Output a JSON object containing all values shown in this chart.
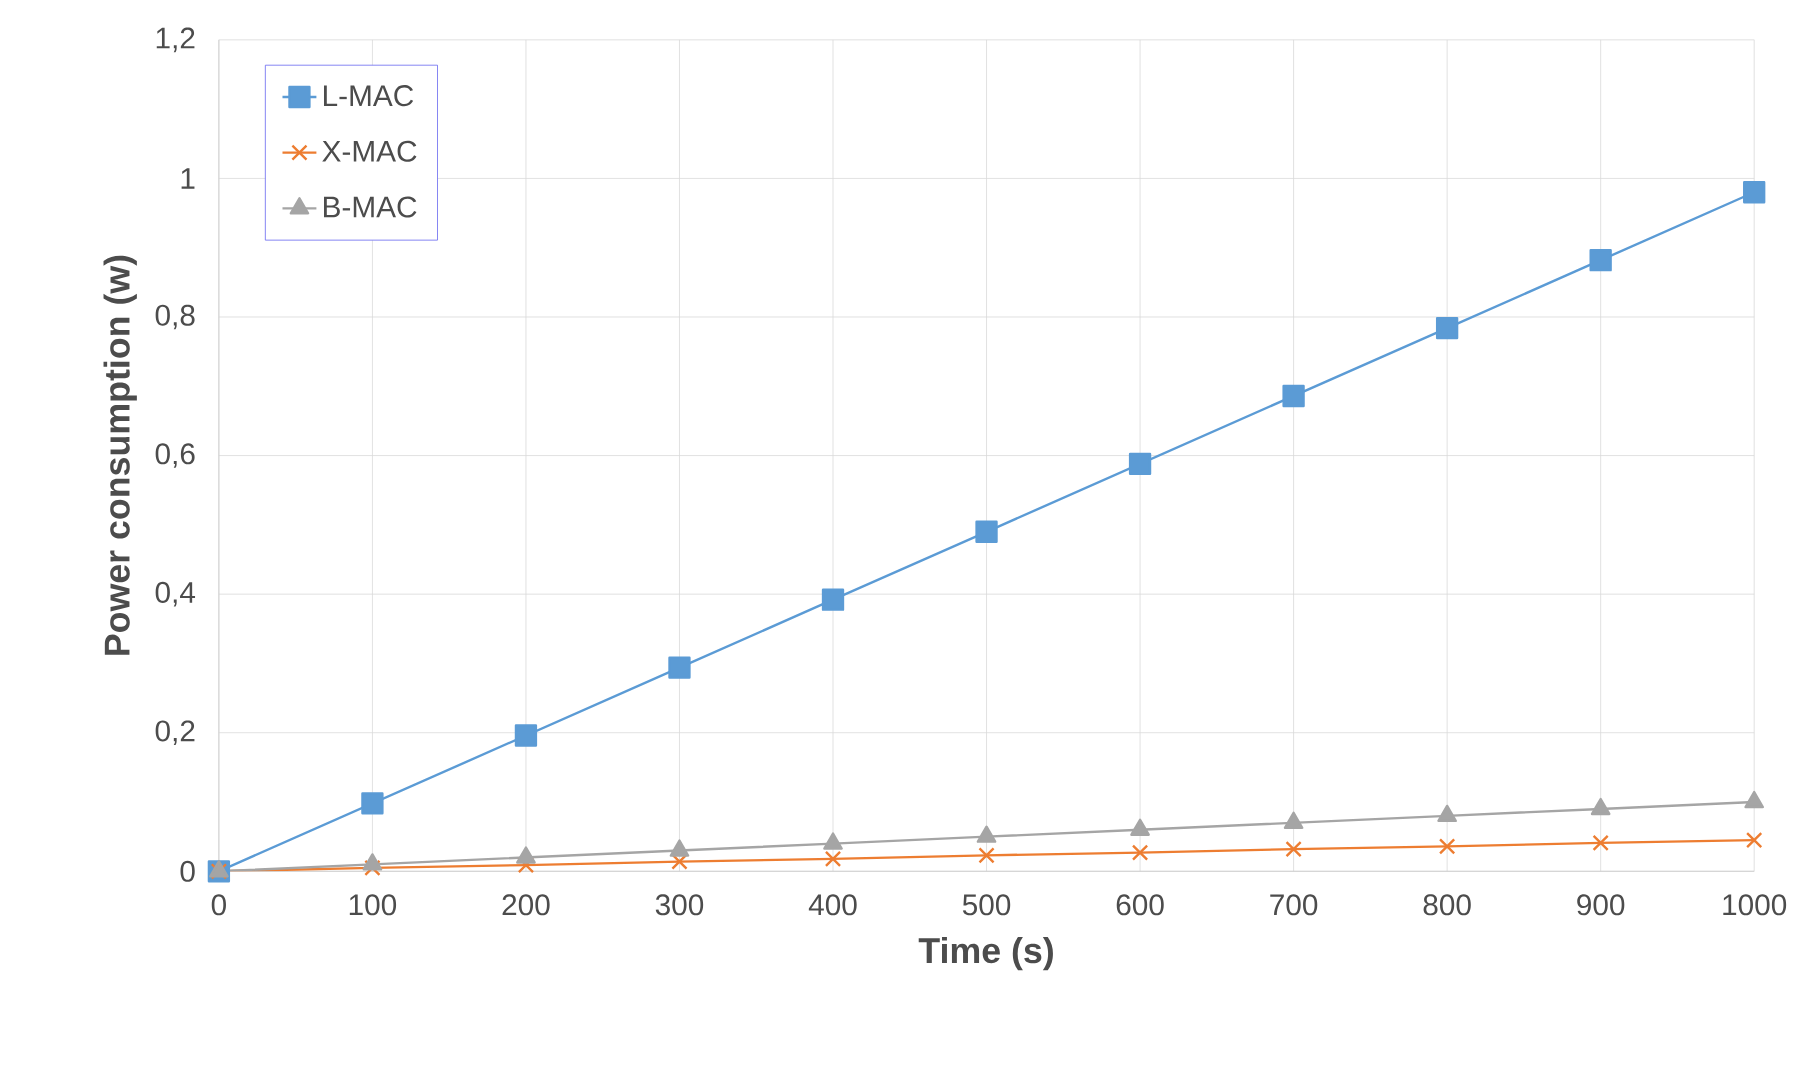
{
  "chart_data": {
    "type": "line",
    "xlabel": "Time (s)",
    "ylabel": "Power consumption (w)",
    "x": [
      0,
      100,
      200,
      300,
      400,
      500,
      600,
      700,
      800,
      900,
      1000
    ],
    "series": [
      {
        "name": "L-MAC",
        "color": "#5b9bd5",
        "marker": "square",
        "values": [
          0,
          0.098,
          0.196,
          0.294,
          0.392,
          0.49,
          0.588,
          0.686,
          0.784,
          0.882,
          0.98
        ]
      },
      {
        "name": "X-MAC",
        "color": "#ed7d31",
        "marker": "cross",
        "values": [
          0,
          0.005,
          0.009,
          0.014,
          0.018,
          0.023,
          0.027,
          0.032,
          0.036,
          0.041,
          0.045
        ]
      },
      {
        "name": "B-MAC",
        "color": "#a5a5a5",
        "marker": "triangle",
        "values": [
          0,
          0.01,
          0.02,
          0.03,
          0.04,
          0.05,
          0.06,
          0.07,
          0.08,
          0.09,
          0.1
        ]
      }
    ],
    "xlim": [
      0,
      1000
    ],
    "ylim": [
      0,
      1.2
    ],
    "xticks": [
      0,
      100,
      200,
      300,
      400,
      500,
      600,
      700,
      800,
      900,
      1000
    ],
    "yticks": [
      0,
      {
        "value": 0.2,
        "label": "0,2"
      },
      {
        "value": 0.4,
        "label": "0,4"
      },
      {
        "value": 0.6,
        "label": "0,6"
      },
      {
        "value": 0.8,
        "label": "0,8"
      },
      1,
      {
        "value": 1.2,
        "label": "1,2"
      }
    ],
    "grid": true,
    "legend": "top left",
    "line_style": "solid"
  }
}
